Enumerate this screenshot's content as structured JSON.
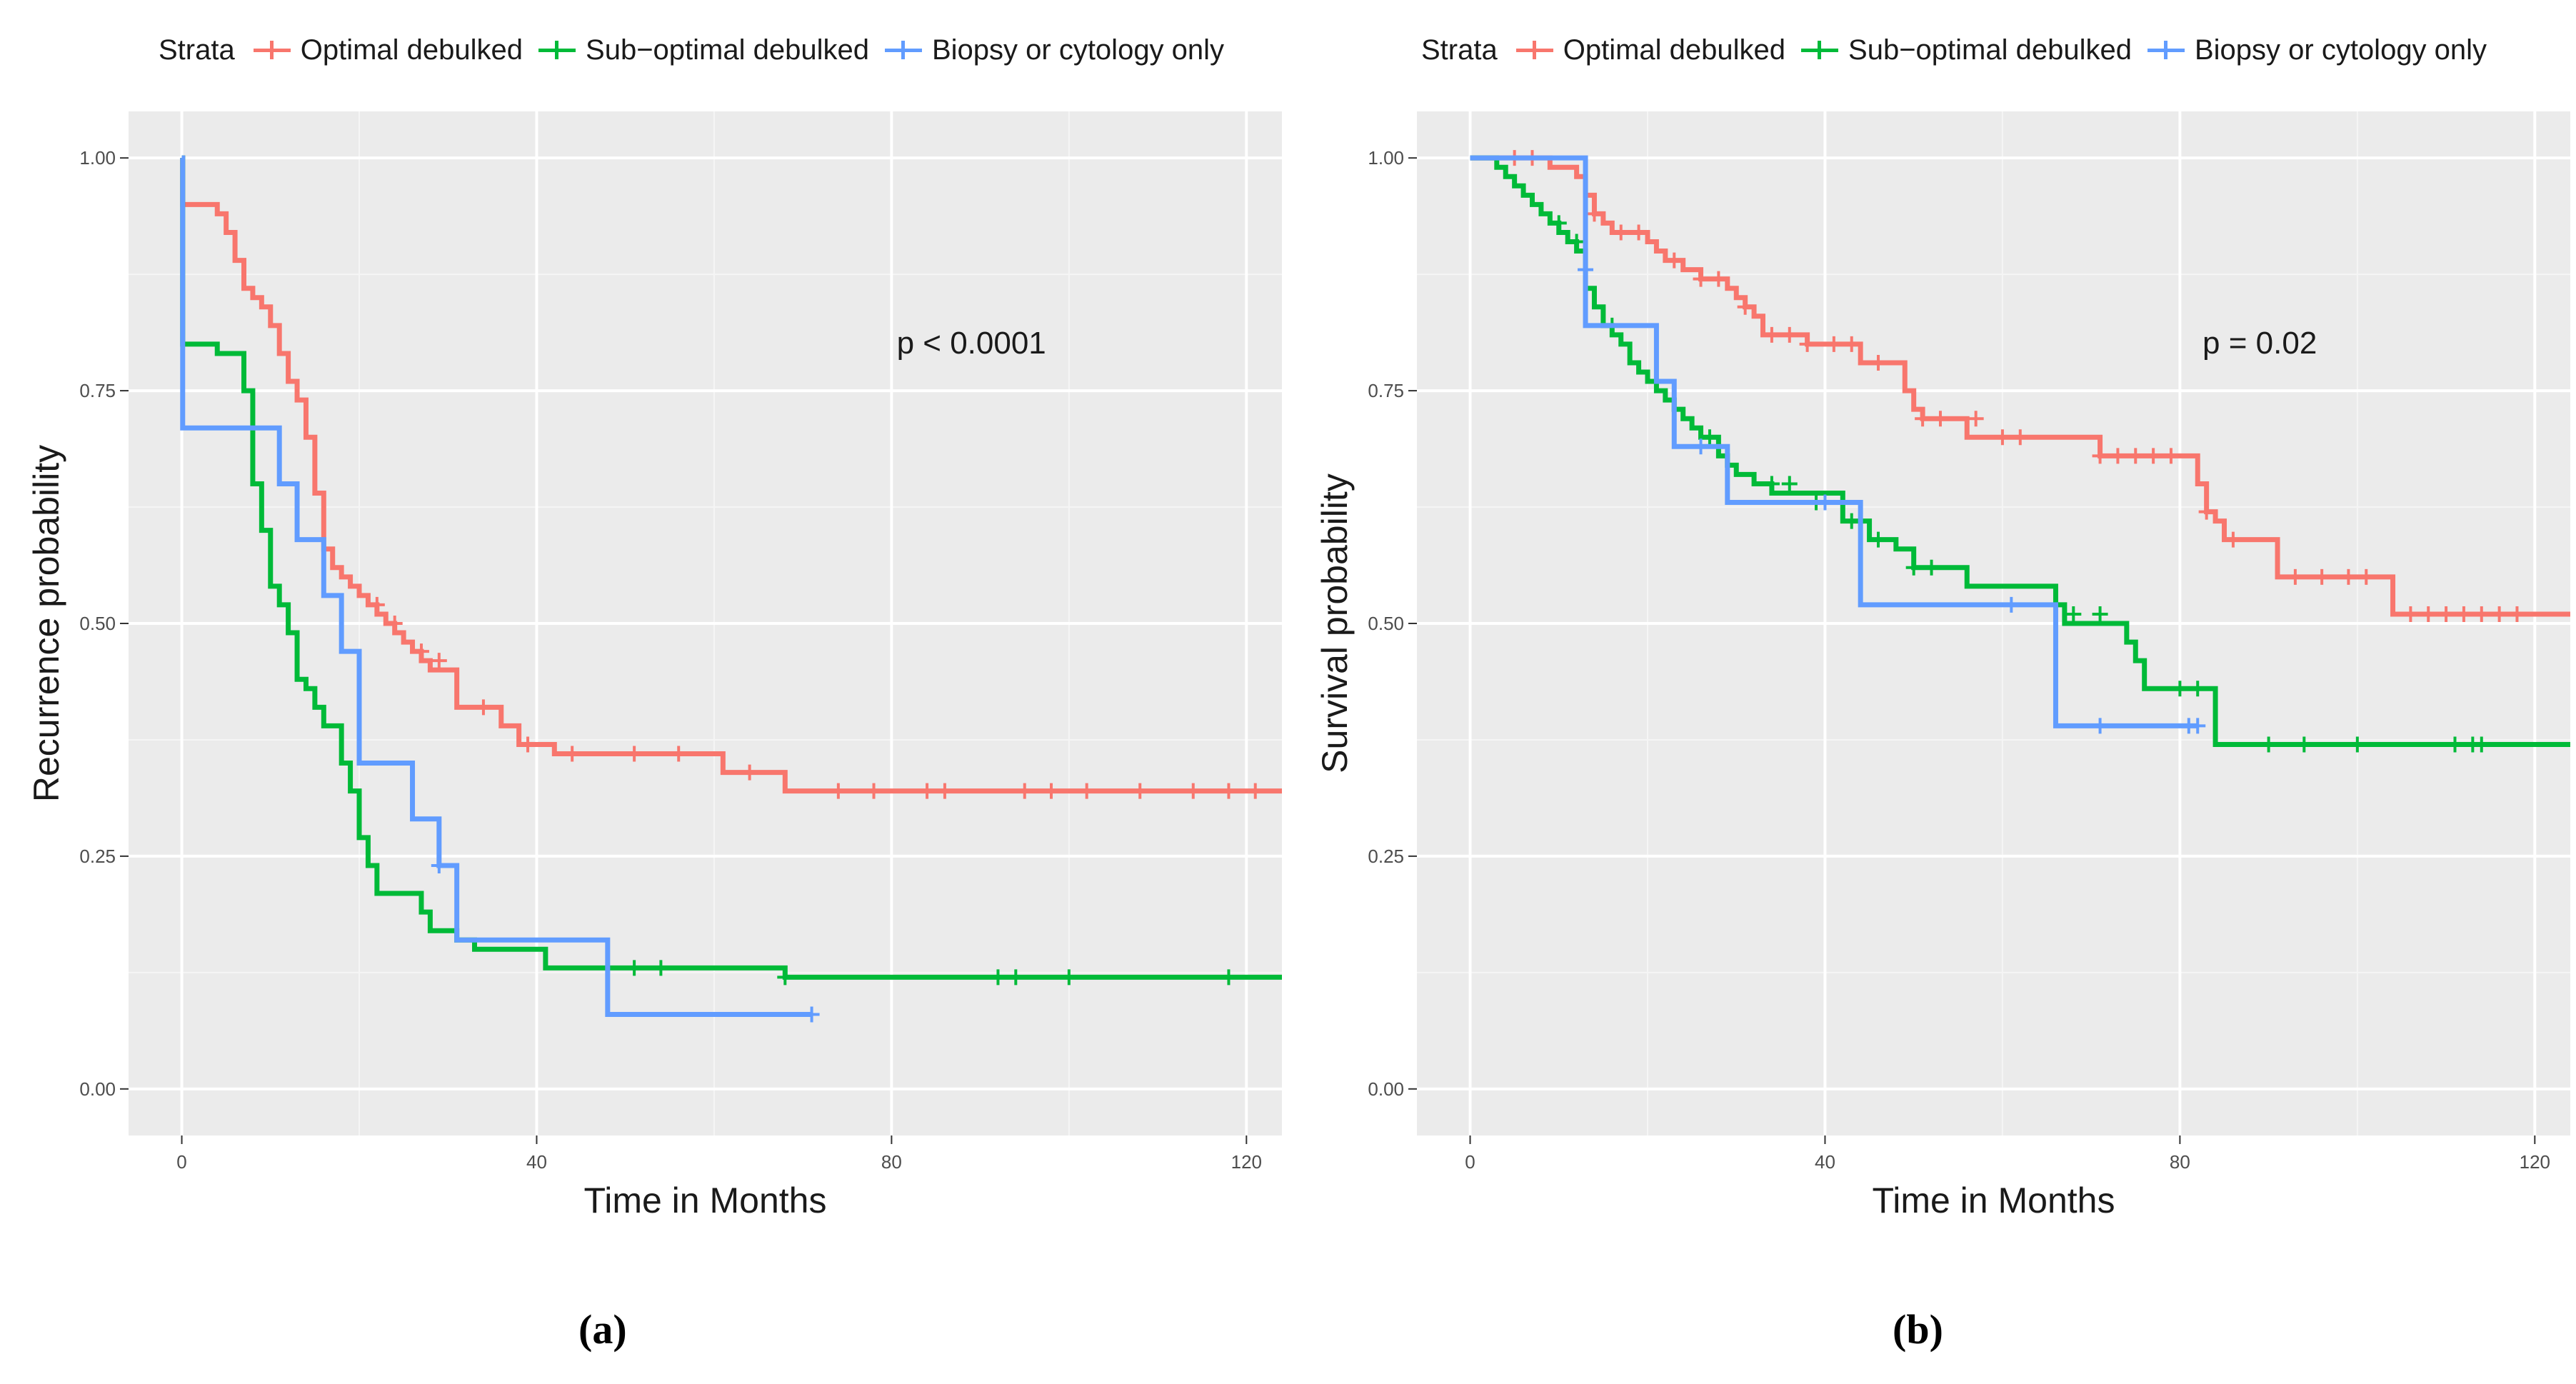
{
  "legend": {
    "title": "Strata",
    "items": [
      {
        "label": "Optimal debulked",
        "color": "#F8766D"
      },
      {
        "label": "Sub−optimal debulked",
        "color": "#00BA38"
      },
      {
        "label": "Biopsy or cytology only",
        "color": "#619CFF"
      }
    ]
  },
  "captions": {
    "a": "(a)",
    "b": "(b)"
  },
  "chart_data": [
    {
      "type": "line",
      "subtype": "step",
      "panel": "(a)",
      "xlabel": "Time in Months",
      "ylabel": "Recurrence probability",
      "annotation": "p < 0.0001",
      "xlim": [
        -6,
        124
      ],
      "ylim": [
        -0.05,
        1.05
      ],
      "x_ticks": [
        0,
        40,
        80,
        120
      ],
      "x_tick_labels": [
        "0",
        "40",
        "80",
        "120"
      ],
      "y_ticks": [
        0.0,
        0.25,
        0.5,
        0.75,
        1.0
      ],
      "y_tick_labels": [
        "0.00",
        "0.25",
        "0.50",
        "0.75",
        "1.00"
      ],
      "grid": true,
      "legend_position": "top",
      "series": [
        {
          "name": "Optimal debulked",
          "color": "#F8766D",
          "x": [
            0,
            0.1,
            4,
            5,
            6,
            7,
            8,
            9,
            10,
            11,
            12,
            13,
            14,
            15,
            16,
            17,
            18,
            19,
            20,
            21,
            22,
            23,
            24,
            25,
            26,
            27,
            28,
            31,
            36,
            38,
            42,
            61,
            68,
            124
          ],
          "y": [
            1.0,
            0.95,
            0.94,
            0.92,
            0.89,
            0.86,
            0.85,
            0.84,
            0.82,
            0.79,
            0.76,
            0.74,
            0.7,
            0.64,
            0.58,
            0.56,
            0.55,
            0.54,
            0.53,
            0.52,
            0.51,
            0.5,
            0.49,
            0.48,
            0.47,
            0.46,
            0.45,
            0.41,
            0.39,
            0.37,
            0.36,
            0.34,
            0.32,
            0.32
          ],
          "censor_x": [
            22,
            24,
            27,
            29,
            34,
            39,
            44,
            51,
            56,
            64,
            74,
            78,
            84,
            86,
            95,
            98,
            102,
            108,
            114,
            118,
            121
          ],
          "censor_y": [
            0.52,
            0.5,
            0.47,
            0.46,
            0.41,
            0.37,
            0.36,
            0.36,
            0.36,
            0.34,
            0.32,
            0.32,
            0.32,
            0.32,
            0.32,
            0.32,
            0.32,
            0.32,
            0.32,
            0.32,
            0.32
          ]
        },
        {
          "name": "Sub−optimal debulked",
          "color": "#00BA38",
          "x": [
            0,
            0.1,
            4,
            7,
            8,
            9,
            10,
            11,
            12,
            13,
            14,
            15,
            16,
            18,
            19,
            20,
            21,
            22,
            27,
            28,
            31,
            33,
            41,
            68,
            124
          ],
          "y": [
            1.0,
            0.8,
            0.79,
            0.75,
            0.65,
            0.6,
            0.54,
            0.52,
            0.49,
            0.44,
            0.43,
            0.41,
            0.39,
            0.35,
            0.32,
            0.27,
            0.24,
            0.21,
            0.19,
            0.17,
            0.16,
            0.15,
            0.13,
            0.12,
            0.12
          ],
          "censor_x": [
            51,
            54,
            68,
            92,
            94,
            100,
            118
          ],
          "censor_y": [
            0.13,
            0.13,
            0.12,
            0.12,
            0.12,
            0.12,
            0.12
          ]
        },
        {
          "name": "Biopsy or cytology only",
          "color": "#619CFF",
          "x": [
            0,
            0.1,
            11,
            13,
            16,
            18,
            20,
            26,
            29,
            31,
            48,
            71
          ],
          "y": [
            1.0,
            0.71,
            0.65,
            0.59,
            0.53,
            0.47,
            0.35,
            0.29,
            0.24,
            0.16,
            0.08,
            0.08
          ],
          "censor_x": [
            29,
            71
          ],
          "censor_y": [
            0.24,
            0.08
          ]
        }
      ]
    },
    {
      "type": "line",
      "subtype": "step",
      "panel": "(b)",
      "xlabel": "Time in Months",
      "ylabel": "Survival probability",
      "annotation": "p = 0.02",
      "xlim": [
        -6,
        124
      ],
      "ylim": [
        -0.05,
        1.05
      ],
      "x_ticks": [
        0,
        40,
        80,
        120
      ],
      "x_tick_labels": [
        "0",
        "40",
        "80",
        "120"
      ],
      "y_ticks": [
        0.0,
        0.25,
        0.5,
        0.75,
        1.0
      ],
      "y_tick_labels": [
        "0.00",
        "0.25",
        "0.50",
        "0.75",
        "1.00"
      ],
      "grid": true,
      "legend_position": "top",
      "series": [
        {
          "name": "Optimal debulked",
          "color": "#F8766D",
          "x": [
            0,
            9,
            12,
            13,
            14,
            15,
            16,
            20,
            21,
            22,
            24,
            26,
            27,
            29,
            30,
            31,
            32,
            33,
            38,
            44,
            49,
            50,
            51,
            53,
            56,
            60,
            71,
            82,
            83,
            84,
            85,
            91,
            104,
            124
          ],
          "y": [
            1.0,
            0.99,
            0.98,
            0.96,
            0.94,
            0.93,
            0.92,
            0.91,
            0.9,
            0.89,
            0.88,
            0.87,
            0.87,
            0.86,
            0.85,
            0.84,
            0.83,
            0.81,
            0.8,
            0.78,
            0.75,
            0.73,
            0.72,
            0.72,
            0.7,
            0.7,
            0.68,
            0.65,
            0.62,
            0.61,
            0.59,
            0.55,
            0.51,
            0.51
          ],
          "censor_x": [
            5,
            7,
            14,
            17,
            19,
            23,
            26,
            28,
            31,
            34,
            36,
            38,
            41,
            43,
            46,
            51,
            53,
            57,
            60,
            62,
            71,
            73,
            75,
            77,
            79,
            83,
            86,
            93,
            96,
            99,
            101,
            106,
            108,
            110,
            112,
            114,
            116,
            118
          ],
          "censor_y": [
            1.0,
            1.0,
            0.94,
            0.92,
            0.92,
            0.89,
            0.87,
            0.87,
            0.84,
            0.81,
            0.81,
            0.8,
            0.8,
            0.8,
            0.78,
            0.72,
            0.72,
            0.72,
            0.7,
            0.7,
            0.68,
            0.68,
            0.68,
            0.68,
            0.68,
            0.62,
            0.59,
            0.55,
            0.55,
            0.55,
            0.55,
            0.51,
            0.51,
            0.51,
            0.51,
            0.51,
            0.51,
            0.51
          ]
        },
        {
          "name": "Sub−optimal debulked",
          "color": "#00BA38",
          "x": [
            0,
            3,
            4,
            5,
            6,
            7,
            8,
            9,
            10,
            11,
            12,
            13,
            14,
            15,
            16,
            17,
            18,
            19,
            20,
            21,
            22,
            23,
            24,
            25,
            26,
            28,
            29,
            30,
            32,
            34,
            42,
            45,
            48,
            50,
            56,
            66,
            67,
            74,
            75,
            76,
            84,
            124
          ],
          "y": [
            1.0,
            0.99,
            0.98,
            0.97,
            0.96,
            0.95,
            0.94,
            0.93,
            0.92,
            0.91,
            0.9,
            0.86,
            0.84,
            0.82,
            0.81,
            0.8,
            0.78,
            0.77,
            0.76,
            0.75,
            0.74,
            0.73,
            0.72,
            0.71,
            0.7,
            0.68,
            0.67,
            0.66,
            0.65,
            0.64,
            0.61,
            0.59,
            0.58,
            0.56,
            0.54,
            0.52,
            0.5,
            0.48,
            0.46,
            0.43,
            0.37,
            0.37
          ],
          "censor_x": [
            10,
            12,
            16,
            27,
            34,
            36,
            39,
            43,
            46,
            50,
            52,
            68,
            71,
            80,
            82,
            90,
            94,
            100,
            111,
            113,
            114
          ],
          "censor_y": [
            0.93,
            0.91,
            0.82,
            0.7,
            0.65,
            0.65,
            0.63,
            0.61,
            0.59,
            0.56,
            0.56,
            0.51,
            0.51,
            0.43,
            0.43,
            0.37,
            0.37,
            0.37,
            0.37,
            0.37,
            0.37
          ]
        },
        {
          "name": "Biopsy or cytology only",
          "color": "#619CFF",
          "x": [
            0,
            13,
            21,
            23,
            29,
            44,
            66,
            82
          ],
          "y": [
            1.0,
            0.82,
            0.76,
            0.69,
            0.63,
            0.52,
            0.39,
            0.39
          ],
          "censor_x": [
            13,
            26,
            40,
            61,
            71,
            81,
            82
          ],
          "censor_y": [
            0.88,
            0.69,
            0.63,
            0.52,
            0.39,
            0.39,
            0.39
          ]
        }
      ]
    }
  ]
}
